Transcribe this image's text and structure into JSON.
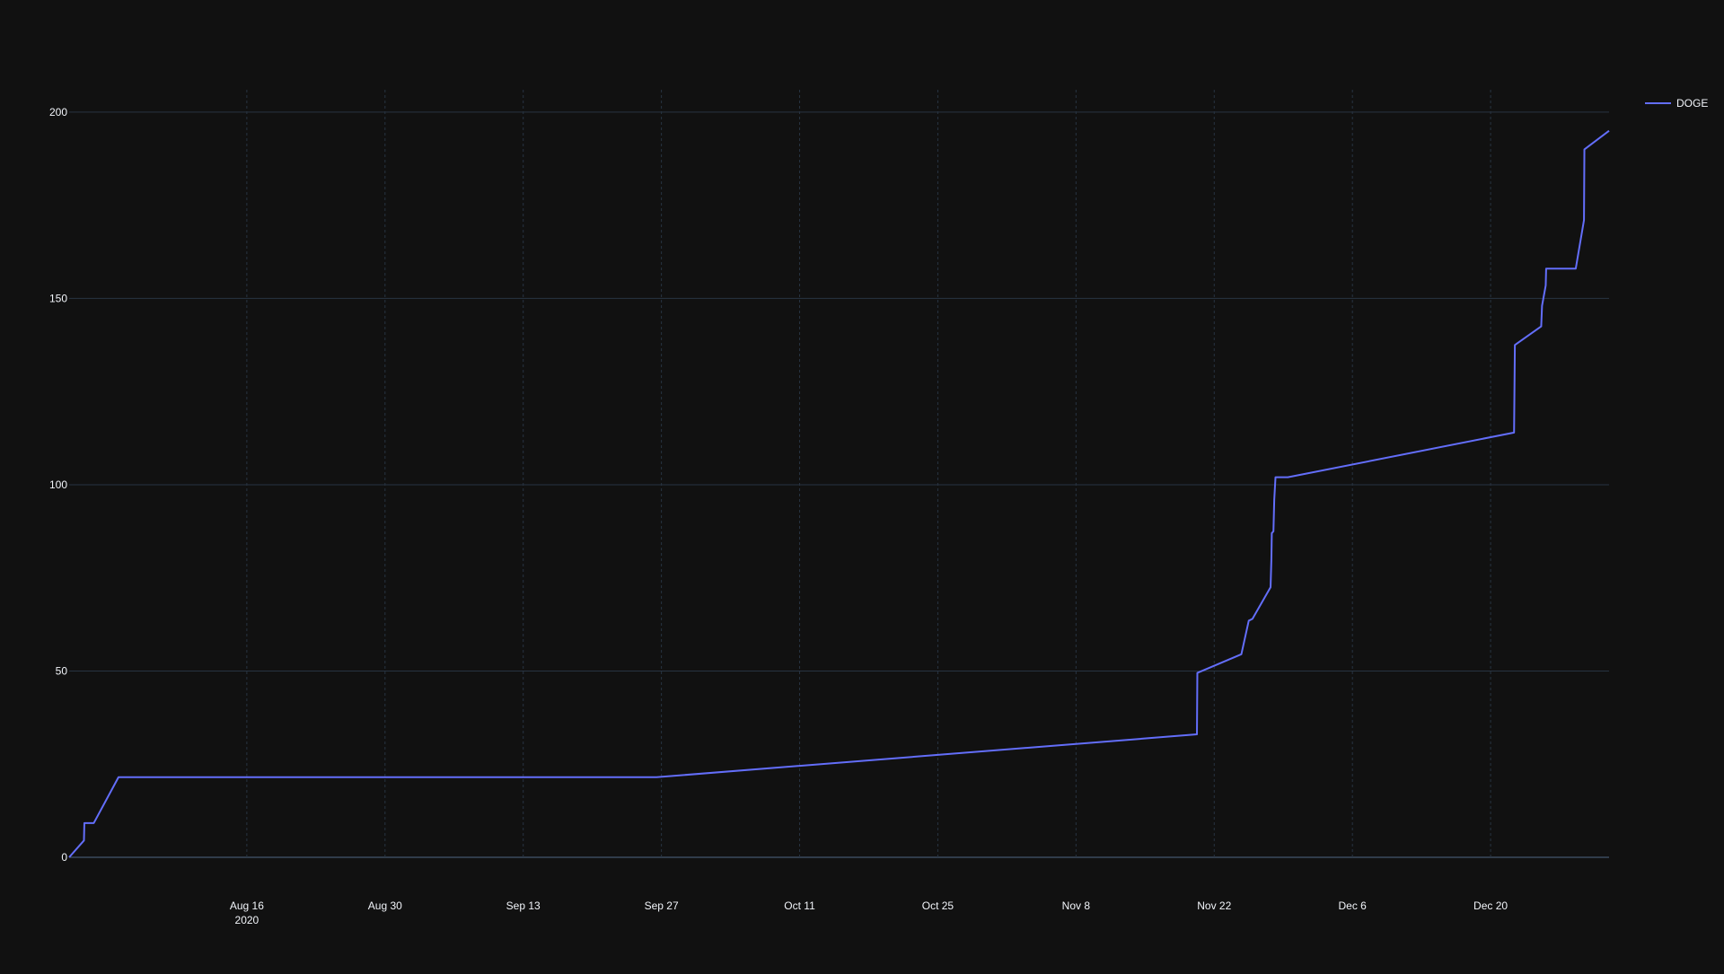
{
  "chart_data": {
    "type": "line",
    "title": "",
    "xlabel": "",
    "ylabel": "",
    "x_axis_type": "date",
    "xlim": [
      "2020-07-29",
      "2021-01-01"
    ],
    "ylim": [
      0,
      206
    ],
    "x_ticks": [
      {
        "date": "2020-08-16",
        "label": "Aug 16",
        "sublabel": "2020"
      },
      {
        "date": "2020-08-30",
        "label": "Aug 30",
        "sublabel": ""
      },
      {
        "date": "2020-09-13",
        "label": "Sep 13",
        "sublabel": ""
      },
      {
        "date": "2020-09-27",
        "label": "Sep 27",
        "sublabel": ""
      },
      {
        "date": "2020-10-11",
        "label": "Oct 11",
        "sublabel": ""
      },
      {
        "date": "2020-10-25",
        "label": "Oct 25",
        "sublabel": ""
      },
      {
        "date": "2020-11-08",
        "label": "Nov 8",
        "sublabel": ""
      },
      {
        "date": "2020-11-22",
        "label": "Nov 22",
        "sublabel": ""
      },
      {
        "date": "2020-12-06",
        "label": "Dec 6",
        "sublabel": ""
      },
      {
        "date": "2020-12-20",
        "label": "Dec 20",
        "sublabel": ""
      }
    ],
    "y_ticks": [
      0,
      50,
      100,
      150,
      200
    ],
    "grid": true,
    "legend_position": "top-right",
    "colors": {
      "background": "#111111",
      "grid": "#283442",
      "zero_line": "#506784",
      "text": "#f2f5fa"
    },
    "series": [
      {
        "name": "DOGE",
        "color": "#636efa",
        "x": [
          "2020-07-29T00:00",
          "2020-07-30T12:00",
          "2020-07-30T13:00",
          "2020-07-31T12:00",
          "2020-08-03T00:00",
          "2020-09-26T12:00",
          "2020-11-20T06:00",
          "2020-11-20T07:00",
          "2020-11-24T18:00",
          "2020-11-25T12:00",
          "2020-11-25T21:00",
          "2020-11-27T17:00",
          "2020-11-27T19:00",
          "2020-11-27T20:00",
          "2020-11-28T00:00",
          "2020-11-28T02:00",
          "2020-11-28T05:00",
          "2020-11-28T11:00",
          "2020-11-29T11:00",
          "2020-12-22T09:00",
          "2020-12-22T11:00",
          "2020-12-25T03:00",
          "2020-12-25T05:00",
          "2020-12-25T14:00",
          "2020-12-25T15:00",
          "2020-12-28T15:00",
          "2020-12-29T11:00",
          "2020-12-29T12:00",
          "2021-01-01T00:00"
        ],
        "y": [
          0,
          4.5,
          9.2,
          9.2,
          21.5,
          21.5,
          33,
          49.5,
          54.5,
          63.5,
          64,
          72.5,
          80,
          87,
          87.5,
          96,
          102,
          102,
          102,
          114,
          137.5,
          142.5,
          148,
          153.5,
          158,
          158,
          171,
          190,
          195
        ]
      }
    ]
  }
}
